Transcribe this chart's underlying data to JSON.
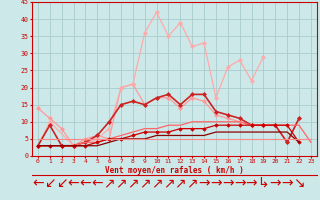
{
  "xlabel": "Vent moyen/en rafales ( km/h )",
  "background_color": "#cce8e8",
  "grid_color": "#aacccc",
  "xlim": [
    -0.5,
    23.5
  ],
  "ylim": [
    0,
    45
  ],
  "yticks": [
    0,
    5,
    10,
    15,
    20,
    25,
    30,
    35,
    40,
    45
  ],
  "xticks": [
    0,
    1,
    2,
    3,
    4,
    5,
    6,
    7,
    8,
    9,
    10,
    11,
    12,
    13,
    14,
    15,
    16,
    17,
    18,
    19,
    20,
    21,
    22,
    23
  ],
  "lines": [
    {
      "x": [
        0,
        1,
        2,
        3,
        4,
        5,
        6,
        7,
        8,
        9,
        10,
        11,
        12,
        13,
        14,
        15,
        16,
        17,
        18,
        19,
        20,
        21,
        22
      ],
      "y": [
        14,
        11,
        8,
        3,
        5,
        6,
        5,
        20,
        21,
        15,
        17,
        17,
        14,
        17,
        16,
        12,
        11,
        10,
        9,
        9,
        9,
        4,
        11
      ],
      "color": "#ff9999",
      "lw": 0.9,
      "marker": "D",
      "ms": 2.0
    },
    {
      "x": [
        0,
        1,
        3,
        4,
        5,
        6,
        7,
        8,
        9,
        10,
        11,
        12,
        13,
        14,
        15,
        16,
        17,
        18,
        19
      ],
      "y": [
        3,
        10,
        3,
        4,
        5,
        8,
        20,
        21,
        36,
        42,
        35,
        39,
        32,
        33,
        17,
        26,
        28,
        22,
        29
      ],
      "color": "#ffaaaa",
      "lw": 0.9,
      "marker": "P",
      "ms": 2.5
    },
    {
      "x": [
        0,
        1,
        2,
        3,
        4,
        5,
        6,
        7,
        8,
        9,
        10,
        11,
        12,
        13,
        14,
        15,
        16,
        17,
        18,
        19,
        20,
        21,
        22
      ],
      "y": [
        3,
        9,
        3,
        3,
        4,
        6,
        10,
        15,
        16,
        15,
        17,
        18,
        15,
        18,
        18,
        13,
        12,
        11,
        9,
        9,
        9,
        4,
        11
      ],
      "color": "#cc2222",
      "lw": 1.2,
      "marker": "D",
      "ms": 2.0
    },
    {
      "x": [
        0,
        1,
        2,
        3,
        4,
        5,
        6,
        7,
        8,
        9,
        10,
        11,
        12,
        13,
        14,
        15,
        16,
        17,
        18,
        19,
        20,
        21,
        22,
        23
      ],
      "y": [
        3,
        3,
        3,
        3,
        4,
        4,
        5,
        6,
        7,
        8,
        8,
        9,
        9,
        10,
        10,
        10,
        10,
        10,
        9,
        9,
        9,
        9,
        9,
        4
      ],
      "color": "#ff6666",
      "lw": 0.9,
      "marker": null,
      "ms": 0
    },
    {
      "x": [
        0,
        1,
        2,
        3,
        4,
        5,
        6,
        7,
        8,
        9,
        10,
        11,
        12,
        13,
        14,
        15,
        16,
        17,
        18,
        19,
        20,
        21,
        22
      ],
      "y": [
        3,
        3,
        3,
        3,
        3,
        4,
        5,
        5,
        6,
        7,
        7,
        7,
        8,
        8,
        8,
        9,
        9,
        9,
        9,
        9,
        9,
        9,
        4
      ],
      "color": "#cc0000",
      "lw": 0.9,
      "marker": "D",
      "ms": 1.8
    },
    {
      "x": [
        0,
        1,
        2,
        3,
        4,
        5,
        6,
        7,
        8,
        9,
        10,
        11,
        12,
        13,
        14,
        15,
        16,
        17,
        18,
        19,
        20,
        21,
        22
      ],
      "y": [
        3,
        3,
        3,
        3,
        3,
        3,
        4,
        5,
        5,
        5,
        6,
        6,
        6,
        6,
        6,
        7,
        7,
        7,
        7,
        7,
        7,
        7,
        4
      ],
      "color": "#880000",
      "lw": 0.9,
      "marker": null,
      "ms": 0
    },
    {
      "x": [
        0,
        1,
        2,
        3,
        4,
        5,
        6,
        7,
        8,
        9,
        10,
        11,
        12,
        13,
        14,
        15,
        16,
        17,
        18,
        19,
        20,
        21,
        22,
        23
      ],
      "y": [
        5,
        5,
        5,
        5,
        5,
        5,
        5,
        5,
        5,
        5,
        5,
        5,
        5,
        5,
        5,
        5,
        5,
        5,
        5,
        5,
        5,
        5,
        5,
        5
      ],
      "color": "#ff8888",
      "lw": 0.8,
      "marker": null,
      "ms": 0
    }
  ],
  "arrow_row": [
    "←",
    "↙",
    "↙",
    "←",
    "←",
    "←",
    "↗",
    "↗",
    "↗",
    "↗",
    "↗",
    "↗",
    "↗",
    "↗",
    "→",
    "→",
    "→",
    "→",
    "→",
    "↳",
    "→",
    "→",
    "↘"
  ]
}
